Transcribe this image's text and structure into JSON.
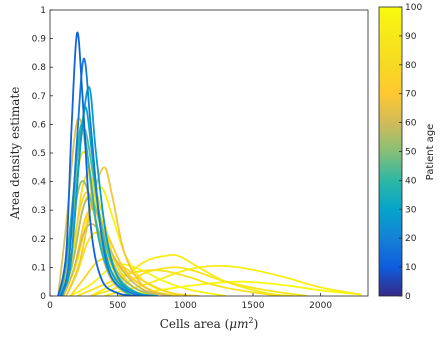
{
  "chart_data": {
    "type": "line",
    "xlabel": "Cells area (μm²)",
    "xlabel_parts": {
      "prefix": "Cells area (",
      "unit": "μm",
      "sup": "2",
      "suffix": ")"
    },
    "ylabel": "Area density estimate",
    "xlim": [
      0,
      2350
    ],
    "ylim": [
      0,
      1
    ],
    "xticks": [
      0,
      500,
      1000,
      1500,
      2000
    ],
    "xtick_labels": [
      "0",
      "500",
      "1000",
      "1500",
      "2000"
    ],
    "yticks": [
      0,
      0.1,
      0.2,
      0.3,
      0.4,
      0.5,
      0.6,
      0.7,
      0.8,
      0.9,
      1
    ],
    "ytick_labels": [
      "0",
      "0.1",
      "0.2",
      "0.3",
      "0.4",
      "0.5",
      "0.6",
      "0.7",
      "0.8",
      "0.9",
      "1"
    ],
    "colorbar": {
      "label": "Patient age",
      "range": [
        0,
        100
      ],
      "ticks": [
        0,
        10,
        20,
        30,
        40,
        50,
        60,
        70,
        80,
        90,
        100
      ],
      "tick_labels": [
        "0",
        "10",
        "20",
        "30",
        "40",
        "50",
        "60",
        "70",
        "80",
        "90",
        "100"
      ],
      "colormap": "parula"
    },
    "series": [
      {
        "age": 12,
        "points": [
          [
            60,
            0
          ],
          [
            120,
            0.15
          ],
          [
            160,
            0.6
          ],
          [
            200,
            0.92
          ],
          [
            240,
            0.7
          ],
          [
            300,
            0.25
          ],
          [
            380,
            0.06
          ],
          [
            500,
            0.01
          ],
          [
            650,
            0
          ]
        ]
      },
      {
        "age": 18,
        "points": [
          [
            80,
            0
          ],
          [
            140,
            0.12
          ],
          [
            200,
            0.55
          ],
          [
            250,
            0.83
          ],
          [
            300,
            0.6
          ],
          [
            370,
            0.25
          ],
          [
            450,
            0.07
          ],
          [
            600,
            0.01
          ],
          [
            750,
            0
          ]
        ]
      },
      {
        "age": 28,
        "points": [
          [
            90,
            0
          ],
          [
            160,
            0.15
          ],
          [
            230,
            0.55
          ],
          [
            290,
            0.73
          ],
          [
            340,
            0.5
          ],
          [
            420,
            0.2
          ],
          [
            520,
            0.05
          ],
          [
            700,
            0
          ]
        ]
      },
      {
        "age": 30,
        "points": [
          [
            80,
            0
          ],
          [
            150,
            0.1
          ],
          [
            210,
            0.45
          ],
          [
            260,
            0.66
          ],
          [
            310,
            0.5
          ],
          [
            380,
            0.22
          ],
          [
            480,
            0.06
          ],
          [
            650,
            0.01
          ],
          [
            800,
            0
          ]
        ]
      },
      {
        "age": 38,
        "points": [
          [
            70,
            0
          ],
          [
            140,
            0.2
          ],
          [
            200,
            0.5
          ],
          [
            240,
            0.6
          ],
          [
            290,
            0.45
          ],
          [
            360,
            0.2
          ],
          [
            460,
            0.06
          ],
          [
            600,
            0
          ]
        ]
      },
      {
        "age": 45,
        "points": [
          [
            80,
            0
          ],
          [
            150,
            0.2
          ],
          [
            210,
            0.52
          ],
          [
            260,
            0.58
          ],
          [
            320,
            0.42
          ],
          [
            400,
            0.2
          ],
          [
            500,
            0.07
          ],
          [
            650,
            0.01
          ],
          [
            800,
            0
          ]
        ]
      },
      {
        "age": 52,
        "points": [
          [
            70,
            0
          ],
          [
            140,
            0.15
          ],
          [
            200,
            0.35
          ],
          [
            250,
            0.4
          ],
          [
            320,
            0.3
          ],
          [
            420,
            0.12
          ],
          [
            550,
            0.03
          ],
          [
            700,
            0
          ]
        ]
      },
      {
        "age": 55,
        "points": [
          [
            90,
            0
          ],
          [
            170,
            0.12
          ],
          [
            240,
            0.3
          ],
          [
            300,
            0.34
          ],
          [
            380,
            0.25
          ],
          [
            480,
            0.1
          ],
          [
            620,
            0.03
          ],
          [
            800,
            0
          ]
        ]
      },
      {
        "age": 60,
        "points": [
          [
            100,
            0
          ],
          [
            180,
            0.1
          ],
          [
            250,
            0.22
          ],
          [
            320,
            0.25
          ],
          [
            420,
            0.18
          ],
          [
            550,
            0.08
          ],
          [
            700,
            0.02
          ],
          [
            900,
            0
          ]
        ]
      },
      {
        "age": 62,
        "points": [
          [
            60,
            0
          ],
          [
            120,
            0.25
          ],
          [
            180,
            0.55
          ],
          [
            220,
            0.62
          ],
          [
            270,
            0.5
          ],
          [
            340,
            0.25
          ],
          [
            430,
            0.08
          ],
          [
            560,
            0.01
          ],
          [
            700,
            0
          ]
        ]
      },
      {
        "age": 68,
        "points": [
          [
            120,
            0
          ],
          [
            220,
            0.12
          ],
          [
            320,
            0.35
          ],
          [
            400,
            0.45
          ],
          [
            460,
            0.35
          ],
          [
            550,
            0.15
          ],
          [
            680,
            0.04
          ],
          [
            850,
            0
          ]
        ]
      },
      {
        "age": 72,
        "points": [
          [
            100,
            0
          ],
          [
            180,
            0.1
          ],
          [
            260,
            0.27
          ],
          [
            330,
            0.3
          ],
          [
            420,
            0.22
          ],
          [
            540,
            0.1
          ],
          [
            700,
            0.03
          ],
          [
            900,
            0
          ]
        ]
      },
      {
        "age": 75,
        "points": [
          [
            80,
            0
          ],
          [
            160,
            0.15
          ],
          [
            230,
            0.32
          ],
          [
            290,
            0.36
          ],
          [
            370,
            0.25
          ],
          [
            470,
            0.1
          ],
          [
            600,
            0.02
          ],
          [
            750,
            0
          ]
        ]
      },
      {
        "age": 78,
        "points": [
          [
            150,
            0
          ],
          [
            250,
            0.06
          ],
          [
            350,
            0.12
          ],
          [
            450,
            0.13
          ],
          [
            550,
            0.1
          ],
          [
            700,
            0.05
          ],
          [
            900,
            0.01
          ],
          [
            1100,
            0
          ]
        ]
      },
      {
        "age": 80,
        "points": [
          [
            70,
            0
          ],
          [
            150,
            0.2
          ],
          [
            210,
            0.45
          ],
          [
            260,
            0.5
          ],
          [
            320,
            0.38
          ],
          [
            400,
            0.18
          ],
          [
            520,
            0.05
          ],
          [
            680,
            0
          ]
        ]
      },
      {
        "age": 82,
        "points": [
          [
            90,
            0
          ],
          [
            170,
            0.15
          ],
          [
            240,
            0.38
          ],
          [
            300,
            0.42
          ],
          [
            380,
            0.3
          ],
          [
            480,
            0.12
          ],
          [
            620,
            0.03
          ],
          [
            800,
            0
          ]
        ]
      },
      {
        "age": 85,
        "points": [
          [
            120,
            0
          ],
          [
            200,
            0.08
          ],
          [
            280,
            0.19
          ],
          [
            350,
            0.22
          ],
          [
            440,
            0.16
          ],
          [
            560,
            0.08
          ],
          [
            750,
            0.02
          ],
          [
            950,
            0
          ]
        ]
      },
      {
        "age": 86,
        "points": [
          [
            200,
            0
          ],
          [
            400,
            0.04
          ],
          [
            600,
            0.08
          ],
          [
            800,
            0.09
          ],
          [
            1000,
            0.07
          ],
          [
            1200,
            0.04
          ],
          [
            1400,
            0.02
          ],
          [
            1700,
            0
          ]
        ]
      },
      {
        "age": 88,
        "points": [
          [
            300,
            0
          ],
          [
            500,
            0.03
          ],
          [
            700,
            0.08
          ],
          [
            900,
            0.1
          ],
          [
            1050,
            0.09
          ],
          [
            1300,
            0.05
          ],
          [
            1600,
            0.02
          ],
          [
            1900,
            0
          ]
        ]
      },
      {
        "age": 90,
        "points": [
          [
            80,
            0
          ],
          [
            160,
            0.1
          ],
          [
            240,
            0.3
          ],
          [
            300,
            0.35
          ],
          [
            380,
            0.27
          ],
          [
            480,
            0.12
          ],
          [
            620,
            0.03
          ],
          [
            800,
            0
          ]
        ]
      },
      {
        "age": 92,
        "points": [
          [
            300,
            0
          ],
          [
            500,
            0.05
          ],
          [
            700,
            0.12
          ],
          [
            850,
            0.14
          ],
          [
            950,
            0.14
          ],
          [
            1100,
            0.1
          ],
          [
            1300,
            0.05
          ],
          [
            1600,
            0.01
          ],
          [
            1800,
            0
          ]
        ]
      },
      {
        "age": 93,
        "points": [
          [
            400,
            0
          ],
          [
            700,
            0.04
          ],
          [
            1000,
            0.09
          ],
          [
            1200,
            0.105
          ],
          [
            1400,
            0.1
          ],
          [
            1700,
            0.07
          ],
          [
            2000,
            0.03
          ],
          [
            2300,
            0.005
          ]
        ]
      },
      {
        "age": 95,
        "points": [
          [
            100,
            0
          ],
          [
            200,
            0.12
          ],
          [
            300,
            0.32
          ],
          [
            380,
            0.38
          ],
          [
            460,
            0.28
          ],
          [
            560,
            0.14
          ],
          [
            700,
            0.05
          ],
          [
            900,
            0.01
          ],
          [
            1100,
            0
          ]
        ]
      },
      {
        "age": 97,
        "points": [
          [
            150,
            0
          ],
          [
            300,
            0.04
          ],
          [
            450,
            0.1
          ],
          [
            550,
            0.11
          ],
          [
            680,
            0.09
          ],
          [
            850,
            0.05
          ],
          [
            1050,
            0.02
          ],
          [
            1300,
            0
          ]
        ]
      },
      {
        "age": 99,
        "points": [
          [
            500,
            0
          ],
          [
            800,
            0.02
          ],
          [
            1100,
            0.04
          ],
          [
            1400,
            0.05
          ],
          [
            1700,
            0.04
          ],
          [
            2000,
            0.02
          ],
          [
            2300,
            0.005
          ]
        ]
      }
    ]
  }
}
